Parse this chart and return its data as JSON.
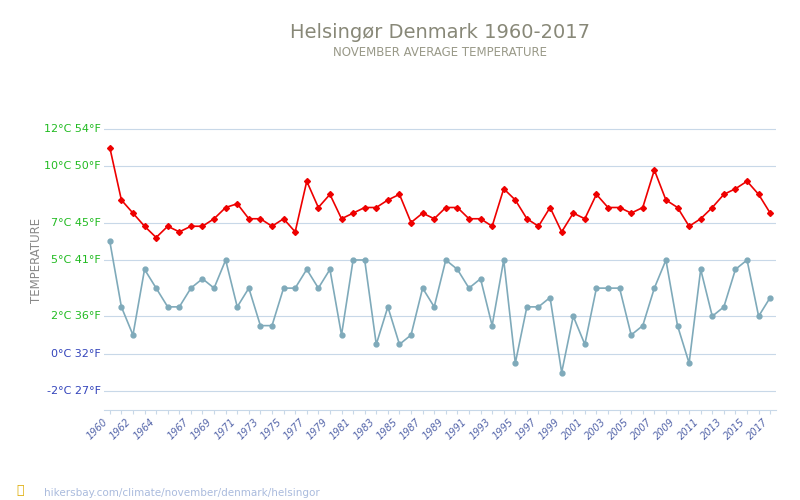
{
  "title": "Helsingør Denmark 1960-2017",
  "subtitle": "NOVEMBER AVERAGE TEMPERATURE",
  "ylabel": "TEMPERATURE",
  "footer": "hikersbay.com/climate/november/denmark/helsingor",
  "bg_color": "#ffffff",
  "grid_color": "#c8d8e8",
  "years": [
    1960,
    1961,
    1962,
    1963,
    1964,
    1965,
    1966,
    1967,
    1968,
    1969,
    1970,
    1971,
    1972,
    1973,
    1974,
    1975,
    1976,
    1977,
    1978,
    1979,
    1980,
    1981,
    1982,
    1983,
    1984,
    1985,
    1986,
    1987,
    1988,
    1989,
    1990,
    1991,
    1992,
    1993,
    1994,
    1995,
    1996,
    1997,
    1998,
    1999,
    2000,
    2001,
    2002,
    2003,
    2004,
    2005,
    2006,
    2007,
    2008,
    2009,
    2010,
    2011,
    2012,
    2013,
    2014,
    2015,
    2016,
    2017
  ],
  "day_temps": [
    11.0,
    8.2,
    7.5,
    6.8,
    6.2,
    6.8,
    6.5,
    6.8,
    6.8,
    7.2,
    7.8,
    8.0,
    7.2,
    7.2,
    6.8,
    7.2,
    6.5,
    9.2,
    7.8,
    8.5,
    7.2,
    7.5,
    7.8,
    7.8,
    8.2,
    8.5,
    7.0,
    7.5,
    7.2,
    7.8,
    7.8,
    7.2,
    7.2,
    6.8,
    8.8,
    8.2,
    7.2,
    6.8,
    7.8,
    6.5,
    7.5,
    7.2,
    8.5,
    7.8,
    7.8,
    7.5,
    7.8,
    9.8,
    8.2,
    7.8,
    6.8,
    7.2,
    7.8,
    8.5,
    8.8,
    9.2,
    8.5,
    7.5
  ],
  "night_temps": [
    6.0,
    2.5,
    1.0,
    4.5,
    3.5,
    2.5,
    2.5,
    3.5,
    4.0,
    3.5,
    5.0,
    2.5,
    3.5,
    1.5,
    1.5,
    3.5,
    3.5,
    4.5,
    3.5,
    4.5,
    1.0,
    5.0,
    5.0,
    0.5,
    2.5,
    0.5,
    1.0,
    3.5,
    2.5,
    5.0,
    4.5,
    3.5,
    4.0,
    1.5,
    5.0,
    -0.5,
    2.5,
    2.5,
    3.0,
    -1.0,
    2.0,
    0.5,
    3.5,
    3.5,
    3.5,
    1.0,
    1.5,
    3.5,
    5.0,
    1.5,
    -0.5,
    4.5,
    2.0,
    2.5,
    4.5,
    5.0,
    2.0,
    3.0
  ],
  "day_color": "#ee0000",
  "night_color": "#7faaba",
  "title_color": "#888878",
  "subtitle_color": "#999988",
  "ylabel_color": "#888888",
  "ytick_color_green": "#22bb22",
  "ytick_color_blue": "#3344bb",
  "xtick_color": "#5566aa",
  "footer_color_gold": "#ddaa00",
  "footer_color_text": "#aabbdd",
  "ylim_min": -3,
  "ylim_max": 13,
  "yticks_c": [
    -2,
    0,
    2,
    5,
    7,
    10,
    12
  ],
  "yticks_f": [
    27,
    32,
    36,
    41,
    45,
    50,
    54
  ],
  "xtick_labels": [
    "1960",
    "1962",
    "1964",
    "1967",
    "1969",
    "1971",
    "1973",
    "1975",
    "1977",
    "1979",
    "1981",
    "1983",
    "1985",
    "1987",
    "1989",
    "1991",
    "1993",
    "1995",
    "1997",
    "1999",
    "2001",
    "2003",
    "2005",
    "2007",
    "2009",
    "2011",
    "2013",
    "2015",
    "2017"
  ]
}
